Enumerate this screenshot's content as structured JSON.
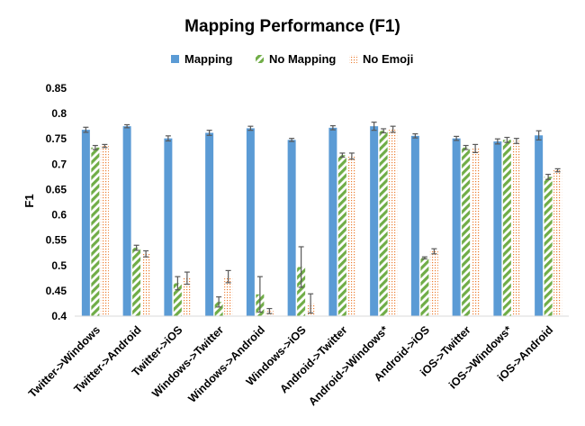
{
  "chart_data": {
    "type": "bar",
    "title": "Mapping Performance (F1)",
    "xlabel": "",
    "ylabel": "F1",
    "ylim": [
      0.4,
      0.85
    ],
    "yticks": [
      "0.4",
      "0.45",
      "0.5",
      "0.55",
      "0.6",
      "0.65",
      "0.7",
      "0.75",
      "0.8",
      "0.85"
    ],
    "legend_position": "top-center",
    "grid": false,
    "categories": [
      "Twitter->Windows",
      "Twitter->Android",
      "Twitter->iOS",
      "Windows->Twitter",
      "Windows->Android",
      "Windows->iOS",
      "Android->Twitter",
      "Android->Windows*",
      "Android->iOS",
      "iOS->Twitter",
      "iOS->Windows*",
      "iOS->Android"
    ],
    "series": [
      {
        "name": "Mapping",
        "pattern": "solid",
        "color": "#5b9bd5",
        "values": [
          0.768,
          0.775,
          0.751,
          0.762,
          0.771,
          0.748,
          0.772,
          0.775,
          0.756,
          0.751,
          0.745,
          0.757
        ],
        "errors": [
          0.005,
          0.003,
          0.005,
          0.005,
          0.004,
          0.003,
          0.004,
          0.008,
          0.004,
          0.004,
          0.005,
          0.009
        ]
      },
      {
        "name": "No Mapping",
        "pattern": "diagonal-stripes",
        "color": "#70ad47",
        "values": [
          0.733,
          0.535,
          0.465,
          0.428,
          0.443,
          0.497,
          0.718,
          0.766,
          0.515,
          0.733,
          0.748,
          0.675
        ],
        "errors": [
          0.004,
          0.005,
          0.013,
          0.01,
          0.035,
          0.04,
          0.004,
          0.004,
          0.002,
          0.004,
          0.005,
          0.005
        ]
      },
      {
        "name": "No Emoji",
        "pattern": "dots",
        "color": "#ed7d31",
        "values": [
          0.736,
          0.523,
          0.475,
          0.478,
          0.41,
          0.425,
          0.716,
          0.769,
          0.528,
          0.731,
          0.746,
          0.688
        ],
        "errors": [
          0.003,
          0.006,
          0.012,
          0.012,
          0.005,
          0.019,
          0.006,
          0.006,
          0.005,
          0.008,
          0.005,
          0.003
        ]
      }
    ]
  }
}
